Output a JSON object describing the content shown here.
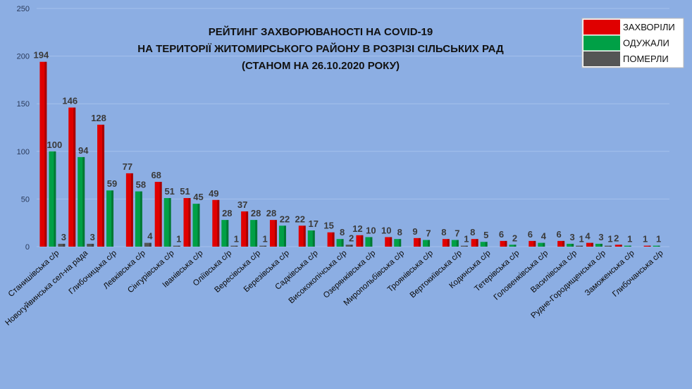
{
  "chart_data": {
    "type": "bar",
    "title": [
      "РЕЙТИНГ ЗАХВОРЮВАНОСТІ НА COVID-19",
      "НА ТЕРИТОРІЇ ЖИТОМИРСЬКОГО РАЙОНУ В РОЗРІЗІ СІЛЬСЬКИХ РАД",
      "(СТАНОМ НА 26.10.2020 РОКУ)"
    ],
    "ylim": [
      0,
      250
    ],
    "yticks": [
      0,
      50,
      100,
      150,
      200,
      250
    ],
    "grid": true,
    "legend_position": "top-right",
    "categories": [
      "Станишівська с/р",
      "Новогуйвинська сел-на рада",
      "Глибочицька с/р",
      "Левківська с/р",
      "Сінгурівська с/р",
      "Іванівська с/р",
      "Оліївська с/р",
      "Вересівська с/р",
      "Березівська с/р",
      "Садківська с/р",
      "Висококопічська с/р",
      "Озерянківська с/р",
      "Миропольбівська с/р",
      "Троянівська с/р",
      "Вертокиївська с/р",
      "Кодинська с/р",
      "Тетерівська с/р",
      "Головенківська с/р",
      "Василівська с/р",
      "Рудне-Городищенська с/р",
      "Заможенська с/р",
      "Глибочанська с/р"
    ],
    "series": [
      {
        "name": "ЗАХВОРІЛИ",
        "color": "#e00000",
        "values": [
          194,
          146,
          128,
          77,
          68,
          51,
          49,
          37,
          28,
          22,
          15,
          12,
          10,
          9,
          8,
          8,
          6,
          6,
          6,
          4,
          2,
          1
        ]
      },
      {
        "name": "ОДУЖАЛИ",
        "color": "#00a046",
        "values": [
          100,
          94,
          59,
          58,
          51,
          45,
          28,
          28,
          22,
          17,
          8,
          10,
          8,
          7,
          7,
          5,
          2,
          4,
          3,
          3,
          1,
          1
        ]
      },
      {
        "name": "ПОМЕРЛИ",
        "color": "#555555",
        "values": [
          3,
          3,
          0,
          4,
          1,
          0,
          1,
          1,
          0,
          0,
          2,
          0,
          0,
          0,
          1,
          0,
          0,
          0,
          1,
          1,
          0,
          0
        ]
      }
    ],
    "data_labels": [
      [
        "194",
        "100",
        "3"
      ],
      [
        "146",
        "94",
        "3"
      ],
      [
        "128",
        "59",
        ""
      ],
      [
        "77",
        "58",
        "4"
      ],
      [
        "68",
        "51",
        "1"
      ],
      [
        "51",
        "45",
        ""
      ],
      [
        "49",
        "28",
        "1"
      ],
      [
        "37",
        "28",
        "1"
      ],
      [
        "28",
        "22",
        ""
      ],
      [
        "22",
        "17",
        ""
      ],
      [
        "15",
        "8",
        "2"
      ],
      [
        "12",
        "10",
        ""
      ],
      [
        "10",
        "8",
        ""
      ],
      [
        "9",
        "7",
        ""
      ],
      [
        "8",
        "7",
        "1"
      ],
      [
        "8",
        "5",
        ""
      ],
      [
        "6",
        "2",
        ""
      ],
      [
        "6",
        "4",
        ""
      ],
      [
        "6",
        "3",
        "1"
      ],
      [
        "4",
        "3",
        "1"
      ],
      [
        "2",
        "1",
        ""
      ],
      [
        "1",
        "1",
        ""
      ]
    ]
  }
}
